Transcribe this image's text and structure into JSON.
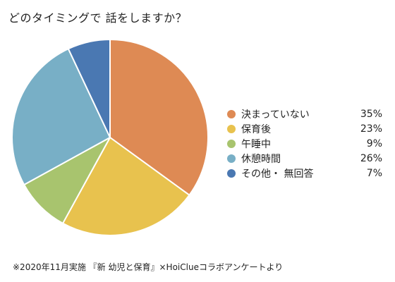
{
  "chart_data": {
    "type": "pie",
    "title": "どのタイミングで 話をしますか？",
    "categories": [
      "決まっていない",
      "保育後",
      "午睡中",
      "休憩時間",
      "その他・ 無回答"
    ],
    "values": [
      35,
      23,
      9,
      26,
      7
    ],
    "value_labels": [
      "35%",
      "23%",
      "9%",
      "26%",
      "7%"
    ],
    "colors": [
      "#DE8A54",
      "#E8C24E",
      "#A8C46E",
      "#78AFC6",
      "#4A78B2"
    ],
    "legend_position": "right",
    "start_angle": "top",
    "direction": "clockwise",
    "footnote": "※2020年11月実施 『新 幼児と保育』×HoiClueコラボアンケートより"
  }
}
